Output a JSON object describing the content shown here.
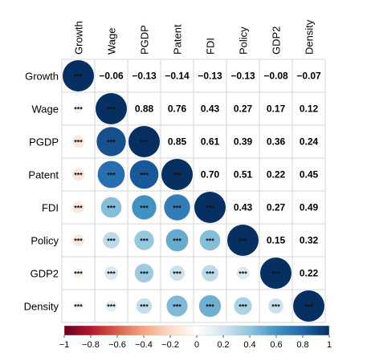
{
  "chart_data": {
    "type": "heatmap",
    "variables": [
      "Growth",
      "Wage",
      "PGDP",
      "Patent",
      "FDI",
      "Policy",
      "GDP2",
      "Density"
    ],
    "coefficients": [
      [
        1.0,
        -0.06,
        -0.13,
        -0.14,
        -0.13,
        -0.13,
        -0.08,
        -0.07
      ],
      [
        -0.06,
        1.0,
        0.88,
        0.76,
        0.43,
        0.27,
        0.17,
        0.12
      ],
      [
        -0.13,
        0.88,
        1.0,
        0.85,
        0.61,
        0.39,
        0.36,
        0.24
      ],
      [
        -0.14,
        0.76,
        0.85,
        1.0,
        0.7,
        0.51,
        0.22,
        0.45
      ],
      [
        -0.13,
        0.43,
        0.61,
        0.7,
        1.0,
        0.43,
        0.27,
        0.49
      ],
      [
        -0.13,
        0.27,
        0.39,
        0.51,
        0.43,
        1.0,
        0.15,
        0.32
      ],
      [
        -0.08,
        0.17,
        0.36,
        0.22,
        0.27,
        0.15,
        1.0,
        0.22
      ],
      [
        -0.07,
        0.12,
        0.24,
        0.45,
        0.49,
        0.32,
        0.22,
        1.0
      ]
    ],
    "upper_labels": [
      [
        "",
        "−0.06",
        "−0.13",
        "−0.14",
        "−0.13",
        "−0.13",
        "−0.08",
        "−0.07"
      ],
      [
        "",
        "",
        "0.88",
        "0.76",
        "0.43",
        "0.27",
        "0.17",
        "0.12"
      ],
      [
        "",
        "",
        "",
        "0.85",
        "0.61",
        "0.39",
        "0.36",
        "0.24"
      ],
      [
        "",
        "",
        "",
        "",
        "0.70",
        "0.51",
        "0.22",
        "0.45"
      ],
      [
        "",
        "",
        "",
        "",
        "",
        "0.43",
        "0.27",
        "0.49"
      ],
      [
        "",
        "",
        "",
        "",
        "",
        "",
        "0.15",
        "0.32"
      ],
      [
        "",
        "",
        "",
        "",
        "",
        "",
        "",
        "0.22"
      ],
      [
        "",
        "",
        "",
        "",
        "",
        "",
        "",
        ""
      ]
    ],
    "significance_mark": "***",
    "colorbar": {
      "range": [
        -1,
        1
      ],
      "tick_labels": [
        "−1",
        "−0.8",
        "−0.6",
        "−0.4",
        "−0.2",
        "0",
        "0.2",
        "0.4",
        "0.6",
        "0.8",
        "1"
      ],
      "colors": [
        "#67001f",
        "#b2182b",
        "#d6604d",
        "#f4a582",
        "#fddbc7",
        "#ffffff",
        "#d1e5f0",
        "#92c5de",
        "#4393c3",
        "#2166ac",
        "#053061"
      ]
    }
  }
}
